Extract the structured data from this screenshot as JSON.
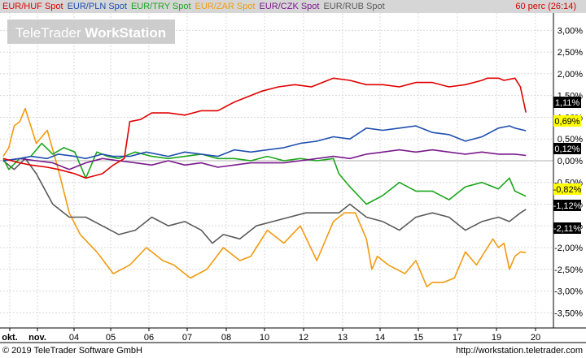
{
  "legend": [
    {
      "label": "EUR/HUF Spot",
      "color": "#e00000"
    },
    {
      "label": "EUR/PLN Spot",
      "color": "#1f4fb0"
    },
    {
      "label": "EUR/TRY Spot",
      "color": "#1aa61a"
    },
    {
      "label": "EUR/ZAR Spot",
      "color": "#f29a11"
    },
    {
      "label": "EUR/CZK Spot",
      "color": "#7a1a8c"
    },
    {
      "label": "EUR/RUB Spot",
      "color": "#5a5a5a"
    }
  ],
  "period_label": "60 perc (26:14)",
  "watermark": {
    "part1": "TeleTrader ",
    "part2": "WorkStation"
  },
  "footer": {
    "copyright": "© 2019 TeleTrader Software GmbH",
    "url": "http://workstation.teletrader.com"
  },
  "colors": {
    "background": "#ffffff",
    "grid": "#d8d8d8",
    "legend_bg": "#d6d6d6"
  },
  "chart_data": {
    "type": "line",
    "x_tick_labels": [
      "okt.",
      "nov.",
      "04",
      "05",
      "06",
      "07",
      "08",
      "10",
      "12",
      "13",
      "14",
      "15",
      "17",
      "19",
      "20"
    ],
    "y_tick_labels": [
      "3,00%",
      "2,50%",
      "2,00%",
      "1,50%",
      "1,00%",
      "0,50%",
      "0,00%",
      "-0,50%",
      "-1,00%",
      "-1,50%",
      "-2,00%",
      "-2,50%",
      "-3,00%",
      "-3,50%"
    ],
    "y_tick_values": [
      3.0,
      2.5,
      2.0,
      1.5,
      1.0,
      0.5,
      0.0,
      -0.5,
      -1.0,
      -1.5,
      -2.0,
      -2.5,
      -3.0,
      -3.5
    ],
    "ylim": [
      -3.85,
      3.4
    ],
    "x_domain": [
      0,
      100
    ],
    "grid": true,
    "series": [
      {
        "name": "EUR/HUF Spot",
        "color": "#e00000",
        "end_label": "1,11%",
        "label_bg": "#000000",
        "label_fg": "#ffffff",
        "x": [
          0,
          3,
          5,
          8,
          10,
          13,
          15,
          18,
          20,
          22,
          23,
          25,
          27,
          30,
          33,
          36,
          39,
          42,
          44,
          47,
          50,
          53,
          56,
          60,
          63,
          66,
          69,
          72,
          75,
          78,
          81,
          84,
          87,
          88,
          90,
          91,
          93,
          94,
          95
        ],
        "y": [
          0.05,
          -0.05,
          -0.1,
          -0.15,
          -0.2,
          -0.3,
          -0.4,
          -0.3,
          -0.1,
          0.05,
          0.9,
          0.95,
          1.1,
          1.1,
          1.05,
          1.15,
          1.15,
          1.35,
          1.45,
          1.6,
          1.7,
          1.75,
          1.7,
          1.9,
          1.85,
          1.75,
          1.75,
          1.7,
          1.8,
          1.8,
          1.7,
          1.75,
          1.85,
          1.9,
          1.9,
          1.85,
          1.9,
          1.7,
          1.11
        ]
      },
      {
        "name": "EUR/PLN Spot",
        "color": "#1f4fb0",
        "end_label": "0,69%",
        "label_bg": "#ffff00",
        "label_fg": "#000000",
        "x": [
          0,
          3,
          5,
          8,
          10,
          13,
          15,
          18,
          20,
          23,
          26,
          30,
          33,
          36,
          39,
          42,
          45,
          48,
          51,
          54,
          57,
          60,
          63,
          66,
          69,
          72,
          75,
          78,
          81,
          84,
          87,
          90,
          92,
          93,
          95
        ],
        "y": [
          0.0,
          0.05,
          0.1,
          0.05,
          0.15,
          0.1,
          0.05,
          0.15,
          0.1,
          0.1,
          0.2,
          0.1,
          0.2,
          0.15,
          0.1,
          0.25,
          0.2,
          0.25,
          0.3,
          0.4,
          0.45,
          0.55,
          0.5,
          0.75,
          0.7,
          0.75,
          0.8,
          0.65,
          0.6,
          0.45,
          0.55,
          0.75,
          0.8,
          0.75,
          0.69
        ]
      },
      {
        "name": "EUR/TRY Spot",
        "color": "#1aa61a",
        "end_label": "-0,82%",
        "label_bg": "#ffff00",
        "label_fg": "#000000",
        "x": [
          0,
          1,
          3,
          5,
          7,
          9,
          11,
          13,
          15,
          17,
          19,
          21,
          24,
          27,
          30,
          33,
          36,
          39,
          42,
          45,
          48,
          51,
          54,
          57,
          60,
          61,
          63,
          66,
          69,
          72,
          75,
          78,
          81,
          84,
          87,
          90,
          92,
          93,
          95
        ],
        "y": [
          0.05,
          -0.2,
          0.05,
          0.1,
          0.4,
          0.15,
          0.3,
          0.2,
          -0.4,
          0.2,
          0.1,
          0.05,
          0.2,
          0.1,
          0.05,
          0.1,
          0.15,
          0.05,
          0.05,
          0.0,
          0.1,
          0.0,
          0.05,
          0.0,
          0.05,
          -0.3,
          -0.6,
          -1.0,
          -0.8,
          -0.5,
          -0.7,
          -0.7,
          -0.9,
          -0.6,
          -0.5,
          -0.65,
          -0.4,
          -0.7,
          -0.82
        ]
      },
      {
        "name": "EUR/ZAR Spot",
        "color": "#f29a11",
        "end_label": "-2,11%",
        "label_bg": "#000000",
        "label_fg": "#ffffff",
        "x": [
          0,
          1,
          2,
          3,
          4,
          5,
          6,
          8,
          10,
          12,
          14,
          17,
          20,
          23,
          26,
          29,
          31,
          34,
          37,
          40,
          43,
          45,
          48,
          51,
          54,
          57,
          60,
          62,
          64,
          66,
          67,
          68,
          70,
          73,
          75,
          77,
          78,
          80,
          82,
          84,
          86,
          88,
          89,
          90,
          91,
          92,
          93,
          94,
          95
        ],
        "y": [
          0.1,
          0.3,
          0.8,
          0.9,
          1.2,
          0.8,
          0.4,
          0.7,
          -0.2,
          -1.2,
          -1.7,
          -2.1,
          -2.6,
          -2.4,
          -2.0,
          -2.3,
          -2.4,
          -2.7,
          -2.5,
          -2.0,
          -2.3,
          -2.2,
          -1.6,
          -1.9,
          -1.5,
          -2.3,
          -1.4,
          -1.2,
          -1.2,
          -1.8,
          -2.5,
          -2.2,
          -2.4,
          -2.6,
          -2.3,
          -2.9,
          -2.8,
          -2.8,
          -2.7,
          -2.1,
          -2.4,
          -2.0,
          -1.8,
          -2.0,
          -1.9,
          -2.5,
          -2.2,
          -2.1,
          -2.11
        ]
      },
      {
        "name": "EUR/CZK Spot",
        "color": "#7a1a8c",
        "end_label": "0,12%",
        "label_bg": "#000000",
        "label_fg": "#ffffff",
        "x": [
          0,
          3,
          6,
          9,
          12,
          15,
          18,
          21,
          24,
          27,
          30,
          33,
          36,
          39,
          42,
          45,
          48,
          51,
          54,
          57,
          60,
          63,
          66,
          69,
          72,
          75,
          78,
          81,
          84,
          87,
          90,
          93,
          95
        ],
        "y": [
          0.0,
          0.05,
          0.0,
          -0.05,
          -0.2,
          -0.05,
          0.05,
          0.0,
          -0.05,
          -0.1,
          0.0,
          -0.1,
          -0.05,
          -0.15,
          -0.1,
          -0.05,
          -0.05,
          -0.05,
          0.0,
          0.05,
          0.1,
          0.05,
          0.15,
          0.2,
          0.25,
          0.2,
          0.25,
          0.2,
          0.15,
          0.2,
          0.15,
          0.15,
          0.12
        ]
      },
      {
        "name": "EUR/RUB Spot",
        "color": "#5a5a5a",
        "end_label": "-1,12%",
        "label_bg": "#000000",
        "label_fg": "#ffffff",
        "x": [
          0,
          2,
          4,
          6,
          9,
          12,
          15,
          18,
          21,
          24,
          27,
          30,
          33,
          36,
          38,
          40,
          43,
          46,
          49,
          52,
          55,
          58,
          61,
          63,
          66,
          69,
          72,
          75,
          78,
          81,
          84,
          87,
          90,
          92,
          94,
          95
        ],
        "y": [
          0.0,
          -0.2,
          0.05,
          -0.3,
          -1.0,
          -1.3,
          -1.3,
          -1.5,
          -1.7,
          -1.6,
          -1.3,
          -1.5,
          -1.4,
          -1.6,
          -1.9,
          -1.7,
          -1.8,
          -1.5,
          -1.4,
          -1.3,
          -1.2,
          -1.2,
          -1.2,
          -1.0,
          -1.3,
          -1.4,
          -1.6,
          -1.3,
          -1.2,
          -1.3,
          -1.6,
          -1.4,
          -1.3,
          -1.4,
          -1.2,
          -1.12
        ]
      }
    ]
  }
}
